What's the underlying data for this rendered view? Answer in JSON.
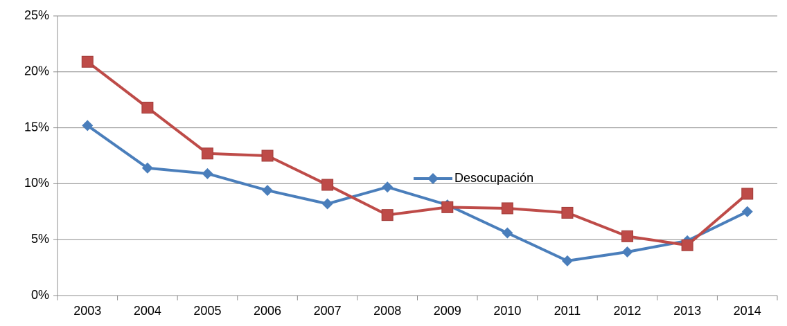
{
  "chart_data": {
    "type": "line",
    "categories": [
      "2003",
      "2004",
      "2005",
      "2006",
      "2007",
      "2008",
      "2009",
      "2010",
      "2011",
      "2012",
      "2013",
      "2014"
    ],
    "series": [
      {
        "name": "Desocupación",
        "color": "#4a7ebb",
        "marker": "diamond",
        "values": [
          15.2,
          11.4,
          10.9,
          9.4,
          8.2,
          9.7,
          8.1,
          5.6,
          3.1,
          3.9,
          4.9,
          7.5
        ]
      },
      {
        "color": "#be4b48",
        "marker": "square",
        "values": [
          20.9,
          16.8,
          12.7,
          12.5,
          9.9,
          7.2,
          7.9,
          7.8,
          7.4,
          5.3,
          4.5,
          9.1
        ]
      }
    ],
    "ylim": [
      0,
      25
    ],
    "yticks": [
      {
        "value": 0,
        "label": "0%"
      },
      {
        "value": 5,
        "label": "5%"
      },
      {
        "value": 10,
        "label": "10%"
      },
      {
        "value": 15,
        "label": "15%"
      },
      {
        "value": 20,
        "label": "20%"
      },
      {
        "value": 25,
        "label": "25%"
      }
    ],
    "grid": true
  }
}
